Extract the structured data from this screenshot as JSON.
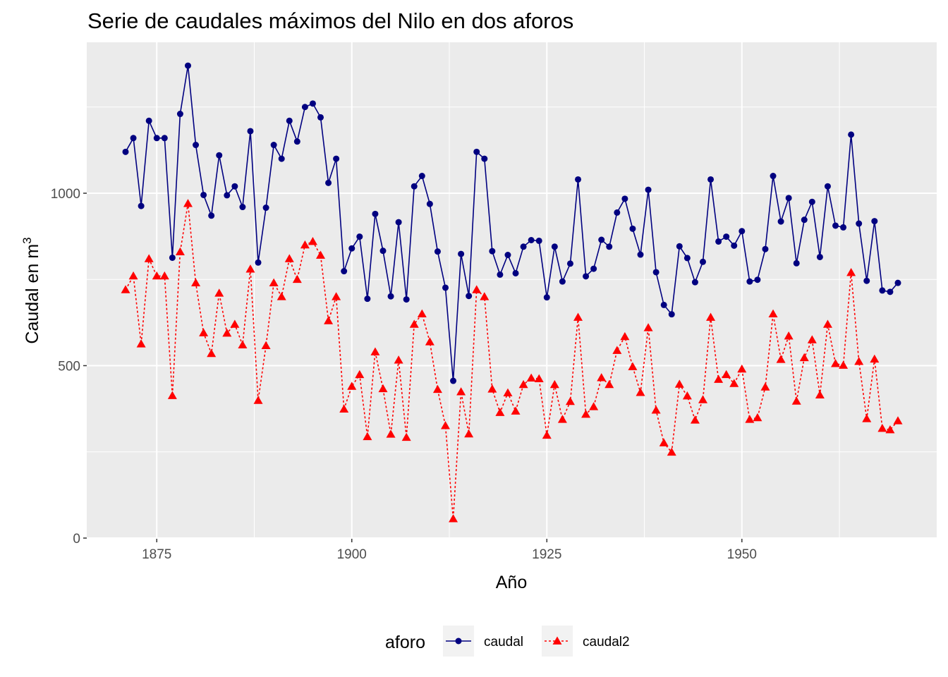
{
  "chart_data": {
    "type": "line",
    "title": "Serie de caudales máximos del Nilo en dos aforos",
    "xlabel": "Año",
    "ylabel": "Caudal en m",
    "ylabel_superscript": "3",
    "xlim": [
      1871,
      1970
    ],
    "ylim": [
      0,
      1370
    ],
    "x_ticks": [
      1875,
      1900,
      1925,
      1950
    ],
    "y_ticks": [
      0,
      500,
      1000
    ],
    "grid": true,
    "legend": {
      "title": "aforo",
      "position": "bottom"
    },
    "x": [
      1871,
      1872,
      1873,
      1874,
      1875,
      1876,
      1877,
      1878,
      1879,
      1880,
      1881,
      1882,
      1883,
      1884,
      1885,
      1886,
      1887,
      1888,
      1889,
      1890,
      1891,
      1892,
      1893,
      1894,
      1895,
      1896,
      1897,
      1898,
      1899,
      1900,
      1901,
      1902,
      1903,
      1904,
      1905,
      1906,
      1907,
      1908,
      1909,
      1910,
      1911,
      1912,
      1913,
      1914,
      1915,
      1916,
      1917,
      1918,
      1919,
      1920,
      1921,
      1922,
      1923,
      1924,
      1925,
      1926,
      1927,
      1928,
      1929,
      1930,
      1931,
      1932,
      1933,
      1934,
      1935,
      1936,
      1937,
      1938,
      1939,
      1940,
      1941,
      1942,
      1943,
      1944,
      1945,
      1946,
      1947,
      1948,
      1949,
      1950,
      1951,
      1952,
      1953,
      1954,
      1955,
      1956,
      1957,
      1958,
      1959,
      1960,
      1961,
      1962,
      1963,
      1964,
      1965,
      1966,
      1967,
      1968,
      1969,
      1970
    ],
    "series": [
      {
        "name": "caudal",
        "color": "#000080",
        "line": "solid",
        "marker": "circle",
        "values": [
          1120,
          1160,
          963,
          1210,
          1160,
          1160,
          813,
          1230,
          1370,
          1140,
          995,
          935,
          1110,
          994,
          1020,
          960,
          1180,
          799,
          958,
          1140,
          1100,
          1210,
          1150,
          1250,
          1260,
          1220,
          1030,
          1100,
          774,
          840,
          874,
          694,
          940,
          833,
          701,
          916,
          692,
          1020,
          1050,
          969,
          831,
          726,
          456,
          824,
          702,
          1120,
          1100,
          832,
          764,
          821,
          768,
          845,
          864,
          862,
          698,
          845,
          744,
          796,
          1040,
          759,
          781,
          865,
          845,
          944,
          984,
          897,
          822,
          1010,
          771,
          676,
          649,
          846,
          812,
          742,
          801,
          1040,
          860,
          874,
          848,
          890,
          744,
          749,
          838,
          1050,
          918,
          986,
          797,
          923,
          975,
          815,
          1020,
          906,
          901,
          1170,
          912,
          746,
          919,
          718,
          714,
          740
        ]
      },
      {
        "name": "caudal2",
        "color": "#ff0000",
        "line": "dashed",
        "marker": "triangle",
        "values": [
          720,
          760,
          563,
          810,
          760,
          760,
          413,
          830,
          970,
          740,
          595,
          535,
          710,
          594,
          620,
          560,
          780,
          399,
          558,
          740,
          700,
          810,
          750,
          850,
          860,
          820,
          630,
          700,
          374,
          440,
          474,
          294,
          540,
          433,
          301,
          516,
          292,
          620,
          650,
          569,
          431,
          326,
          56,
          424,
          302,
          720,
          700,
          432,
          364,
          421,
          368,
          445,
          464,
          462,
          298,
          445,
          344,
          396,
          640,
          359,
          381,
          465,
          445,
          544,
          584,
          497,
          422,
          610,
          371,
          276,
          249,
          446,
          412,
          342,
          401,
          640,
          460,
          474,
          448,
          490,
          344,
          349,
          438,
          650,
          518,
          586,
          397,
          523,
          575,
          415,
          620,
          506,
          501,
          770,
          512,
          346,
          519,
          318,
          314,
          340
        ]
      }
    ]
  }
}
